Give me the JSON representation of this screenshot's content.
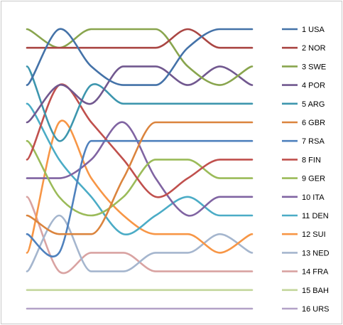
{
  "chart_data": {
    "type": "line",
    "title": "",
    "xlabel": "",
    "ylabel": "",
    "x": [
      1,
      2,
      3,
      4,
      5,
      6,
      7,
      8
    ],
    "ylim": [
      1,
      16
    ],
    "y_inverted": true,
    "grid": false,
    "axes_visible": false,
    "legend_position": "right",
    "series": [
      {
        "name": "1 USA",
        "color": "#4472A8",
        "values": [
          4,
          1,
          3,
          4,
          4,
          2,
          1,
          1
        ]
      },
      {
        "name": "2 NOR",
        "color": "#AA4643",
        "values": [
          2,
          2,
          2,
          2,
          2,
          1,
          2,
          2
        ]
      },
      {
        "name": "3 SWE",
        "color": "#89A54E",
        "values": [
          1,
          2,
          1,
          1,
          1,
          3,
          4,
          3
        ]
      },
      {
        "name": "4 POR",
        "color": "#71588F",
        "values": [
          6,
          4,
          5,
          3,
          3,
          4,
          3,
          4
        ]
      },
      {
        "name": "5 ARG",
        "color": "#3D96AE",
        "values": [
          3,
          7,
          4,
          5,
          5,
          5,
          5,
          5
        ]
      },
      {
        "name": "6 GBR",
        "color": "#DB843D",
        "values": [
          11,
          12,
          12,
          9,
          6,
          6,
          6,
          6
        ]
      },
      {
        "name": "7 RSA",
        "color": "#4F81BD",
        "values": [
          12,
          13,
          7,
          7,
          7,
          7,
          7,
          7
        ]
      },
      {
        "name": "8 FIN",
        "color": "#C0504D",
        "values": [
          8,
          4,
          6,
          8,
          10,
          9,
          8,
          8
        ]
      },
      {
        "name": "9 GER",
        "color": "#9BBB59",
        "values": [
          7,
          10,
          11,
          10,
          8,
          8,
          9,
          9
        ]
      },
      {
        "name": "10 ITA",
        "color": "#8064A2",
        "values": [
          9,
          9,
          8,
          6,
          9,
          11,
          10,
          10
        ]
      },
      {
        "name": "11 DEN",
        "color": "#4BACC6",
        "values": [
          5,
          8,
          10,
          12,
          11,
          10,
          11,
          11
        ]
      },
      {
        "name": "12 SUI",
        "color": "#F79646",
        "values": [
          13,
          6,
          9,
          11,
          12,
          12,
          13,
          12
        ]
      },
      {
        "name": "13 NED",
        "color": "#A5B6CE",
        "values": [
          14,
          11,
          14,
          14,
          13,
          13,
          12,
          13
        ]
      },
      {
        "name": "14 FRA",
        "color": "#D9A3A2",
        "values": [
          10,
          14,
          13,
          13,
          14,
          14,
          14,
          14
        ]
      },
      {
        "name": "15 BAH",
        "color": "#C3D69B",
        "values": [
          15,
          15,
          15,
          15,
          15,
          15,
          15,
          15
        ]
      },
      {
        "name": "16 URS",
        "color": "#B3A2C7",
        "values": [
          16,
          16,
          16,
          16,
          16,
          16,
          16,
          16
        ]
      }
    ]
  }
}
